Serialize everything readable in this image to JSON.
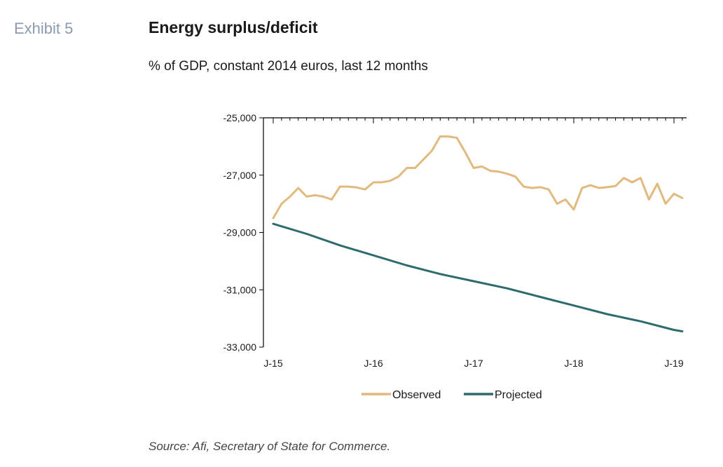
{
  "header": {
    "exhibit": "Exhibit 5",
    "title": "Energy surplus/deficit",
    "subtitle": "% of GDP, constant 2014 euros, last 12 months"
  },
  "footer": {
    "source": "Source: Afi, Secretary of State for Commerce."
  },
  "chart_data": {
    "type": "line",
    "title": "Energy surplus/deficit",
    "subtitle": "% of GDP, constant 2014 euros, last 12 months",
    "xlabel": "",
    "ylabel": "",
    "ylim": [
      -33000,
      -25000
    ],
    "yticks": [
      -25000,
      -27000,
      -29000,
      -31000,
      -33000
    ],
    "ytick_labels": [
      "-25,000",
      "-27,000",
      "-29,000",
      "-31,000",
      "-33,000"
    ],
    "xlim": [
      0,
      49
    ],
    "xticks": [
      0,
      12,
      24,
      36,
      48
    ],
    "xtick_labels": [
      "J-15",
      "J-16",
      "J-17",
      "J-18",
      "J-19"
    ],
    "grid": false,
    "legend": "bottom",
    "series": [
      {
        "name": "Observed",
        "color": "#e2b97e",
        "x": [
          0,
          1,
          2,
          3,
          4,
          5,
          6,
          7,
          8,
          9,
          10,
          11,
          12,
          13,
          14,
          15,
          16,
          17,
          18,
          19,
          20,
          21,
          22,
          23,
          24,
          25,
          26,
          27,
          28,
          29,
          30,
          31,
          32,
          33,
          34,
          35,
          36,
          37,
          38,
          39,
          40,
          41,
          42,
          43,
          44,
          45,
          46,
          47,
          48,
          49
        ],
        "y": [
          -28500,
          -28000,
          -27750,
          -27450,
          -27750,
          -27700,
          -27750,
          -27850,
          -27400,
          -27400,
          -27430,
          -27500,
          -27250,
          -27250,
          -27200,
          -27050,
          -26750,
          -26750,
          -26450,
          -26150,
          -25650,
          -25650,
          -25700,
          -26200,
          -26750,
          -26700,
          -26850,
          -26880,
          -26950,
          -27050,
          -27400,
          -27450,
          -27420,
          -27500,
          -28000,
          -27850,
          -28200,
          -27450,
          -27350,
          -27450,
          -27420,
          -27380,
          -27100,
          -27250,
          -27100,
          -27850,
          -27300,
          -28000,
          -27650,
          -27800
        ]
      },
      {
        "name": "Projected",
        "color": "#2e6b6b",
        "x": [
          0,
          4,
          8,
          12,
          16,
          20,
          24,
          28,
          32,
          36,
          40,
          44,
          48,
          49
        ],
        "y": [
          -28700,
          -29050,
          -29450,
          -29800,
          -30150,
          -30450,
          -30700,
          -30950,
          -31250,
          -31550,
          -31850,
          -32100,
          -32400,
          -32450
        ]
      }
    ]
  }
}
